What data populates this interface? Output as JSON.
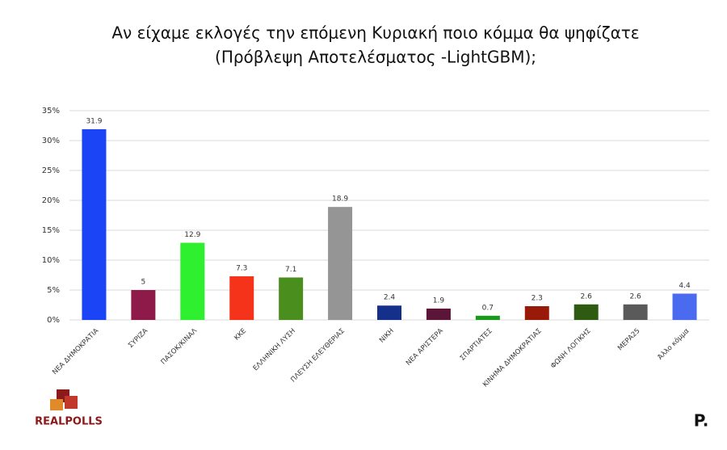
{
  "chart_data": {
    "type": "bar",
    "title": "Αν είχαμε εκλογές την επόμενη Κυριακή ποιο κόμμα θα ψηφίζατε",
    "subtitle": "(Πρόβλεψη Αποτελέσματος -LightGBM);",
    "categories": [
      "ΝΕΑ ΔΗΜΟΚΡΑΤΙΑ",
      "ΣΥΡΙΖΑ",
      "ΠΑΣΟΚ/ΚΙΝΑΛ",
      "ΚΚΕ",
      "ΕΛΛΗΝΙΚΗ ΛΥΣΗ",
      "ΠΛΕΥΣΗ ΕΛΕΥΘΕΡΙΑΣ",
      "ΝΙΚΗ",
      "ΝΕΑ ΑΡΙΣΤΕΡΑ",
      "ΣΠΑΡΤΙΑΤΕΣ",
      "ΚΙΝΗΜΑ ΔΗΜΟΚΡΑΤΙΑΣ",
      "ΦΩΝΗ ΛΟΓΙΚΗΣ",
      "ΜΕΡΑ25",
      "Άλλο κόμμα"
    ],
    "values": [
      31.9,
      5,
      12.9,
      7.3,
      7.1,
      18.9,
      2.4,
      1.9,
      0.7,
      2.3,
      2.6,
      2.6,
      4.4
    ],
    "colors": [
      "#1a44f5",
      "#8e1a4a",
      "#2ef02e",
      "#f5321a",
      "#4a8f1e",
      "#959595",
      "#15308a",
      "#5a1538",
      "#1a9a1a",
      "#9a1a0a",
      "#2f5a12",
      "#5a5a5a",
      "#4a6af0"
    ],
    "ylim": [
      0,
      35
    ],
    "yticks": [
      {
        "value": 0,
        "label": "0%"
      },
      {
        "value": 5,
        "label": "5%"
      },
      {
        "value": 10,
        "label": "10%"
      },
      {
        "value": 15,
        "label": "15%"
      },
      {
        "value": 20,
        "label": "20%"
      },
      {
        "value": 25,
        "label": "25%"
      },
      {
        "value": 30,
        "label": "30%"
      },
      {
        "value": 35,
        "label": "35%"
      }
    ],
    "grid": true,
    "logo_text": "REALPOLLS",
    "publisher_mark": "P."
  }
}
